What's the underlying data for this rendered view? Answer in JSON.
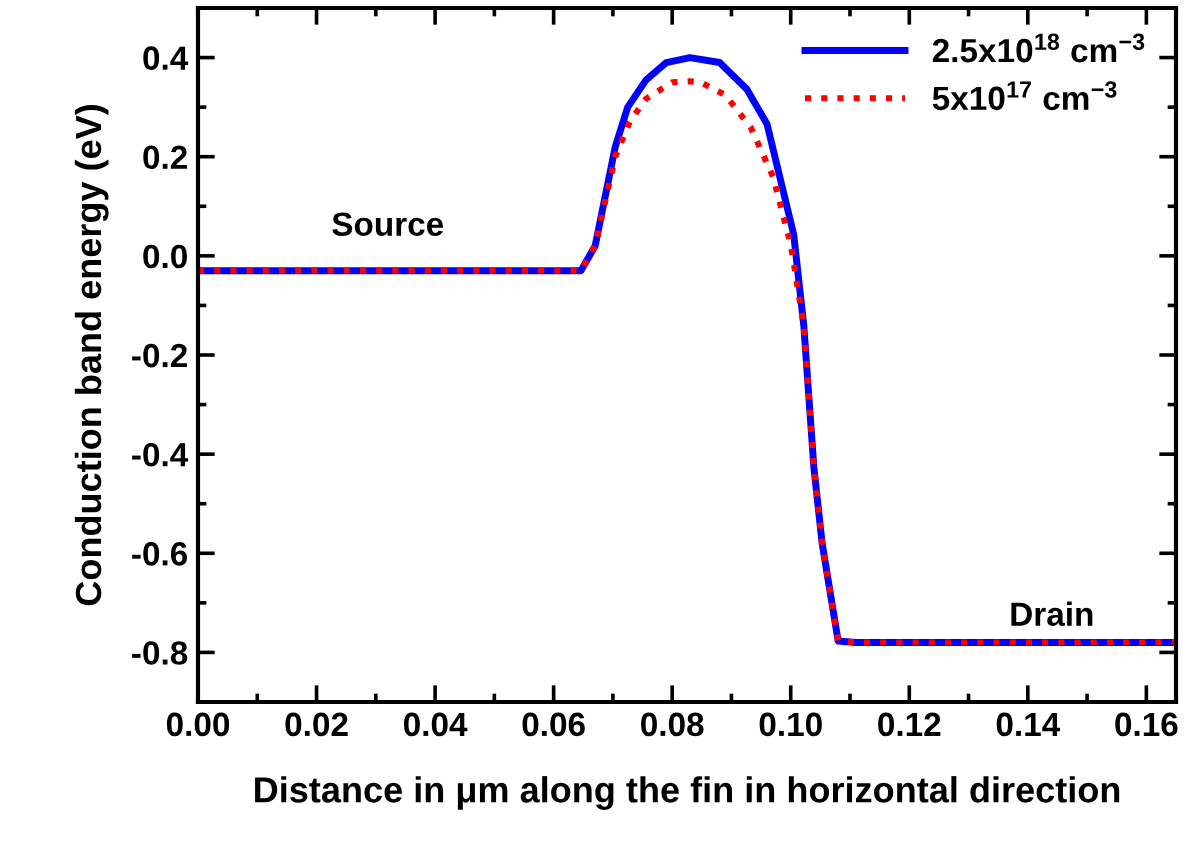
{
  "chart_data": {
    "type": "line",
    "xlabel": "Distance in μm along the fin in horizontal direction",
    "ylabel": "Conduction band energy (eV)",
    "series": [
      {
        "name": "2.5x10$^{18}$ cm$^{−3}$",
        "color": "#0000ff",
        "line_style": "solid",
        "x": [
          0,
          0.0646,
          0.067,
          0.0704,
          0.0725,
          0.0756,
          0.079,
          0.083,
          0.088,
          0.0926,
          0.096,
          0.1005,
          0.1022,
          0.1039,
          0.1053,
          0.108,
          0.111,
          0.165
        ],
        "values": [
          -0.03,
          -0.03,
          0.02,
          0.22,
          0.3,
          0.355,
          0.39,
          0.4,
          0.39,
          0.336,
          0.266,
          0.043,
          -0.14,
          -0.426,
          -0.58,
          -0.777,
          -0.78,
          -0.78
        ]
      },
      {
        "name": "5x10$^{17}$ cm$^{−3}$",
        "color": "#ff0000",
        "line_style": "dotted",
        "x": [
          0,
          0.0646,
          0.067,
          0.0704,
          0.0728,
          0.0756,
          0.08,
          0.083,
          0.0848,
          0.089,
          0.0933,
          0.097,
          0.1,
          0.1022,
          0.1039,
          0.1053,
          0.108,
          0.111,
          0.165
        ],
        "values": [
          -0.03,
          -0.03,
          0.02,
          0.2,
          0.27,
          0.317,
          0.35,
          0.352,
          0.35,
          0.324,
          0.258,
          0.16,
          0.023,
          -0.14,
          -0.426,
          -0.58,
          -0.777,
          -0.78,
          -0.78
        ]
      }
    ],
    "annotations": [
      "Source",
      "Drain"
    ],
    "xlim": [
      0,
      0.165
    ],
    "ylim": [
      -0.9,
      0.5
    ],
    "xticks": [
      {
        "value": 0,
        "label": "0.00"
      },
      {
        "value": 0.02,
        "label": "0.02"
      },
      {
        "value": 0.04,
        "label": "0.04"
      },
      {
        "value": 0.06,
        "label": "0.06"
      },
      {
        "value": 0.08,
        "label": "0.08"
      },
      {
        "value": 0.1,
        "label": "0.10"
      },
      {
        "value": 0.12,
        "label": "0.12"
      },
      {
        "value": 0.14,
        "label": "0.14"
      },
      {
        "value": 0.16,
        "label": "0.16"
      }
    ],
    "yticks": [
      {
        "value": 0.4,
        "label": "0.4"
      },
      {
        "value": 0.2,
        "label": "0.2"
      },
      {
        "value": 0,
        "label": "0.0"
      },
      {
        "value": -0.2,
        "label": "-0.2"
      },
      {
        "value": -0.4,
        "label": "-0.4"
      },
      {
        "value": -0.6,
        "label": "-0.6"
      },
      {
        "value": -0.8,
        "label": "-0.8"
      }
    ],
    "grid": false,
    "legend": "top right",
    "marker": "none"
  }
}
